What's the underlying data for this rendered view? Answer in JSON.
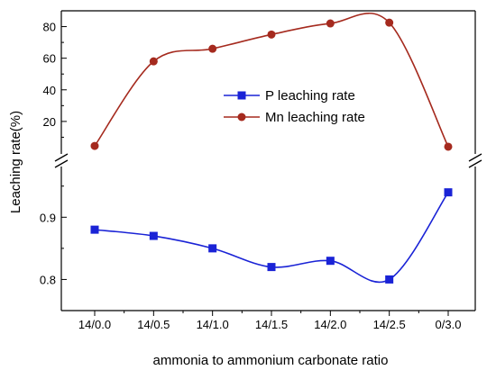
{
  "chart_data": {
    "type": "line",
    "title": "",
    "xlabel": "ammonia to ammonium carbonate  ratio",
    "ylabel": "Leaching rate(%)",
    "categories": [
      "14/0.0",
      "14/0.5",
      "14/1.0",
      "14/1.5",
      "14/2.0",
      "14/2.5",
      "0/3.0"
    ],
    "axis_break": true,
    "upper_axis": {
      "ylim": [
        0,
        90
      ],
      "ticks": [
        "20",
        "40",
        "60",
        "80"
      ]
    },
    "lower_axis": {
      "ylim": [
        0.75,
        0.98
      ],
      "ticks": [
        "0.8",
        "0.9"
      ]
    },
    "legend_position": "center-right",
    "series": [
      {
        "name": "P  leaching rate",
        "panel": "lower",
        "color": "#1a23d6",
        "marker": "square",
        "values": [
          0.88,
          0.87,
          0.85,
          0.82,
          0.83,
          0.8,
          0.94
        ]
      },
      {
        "name": "Mn leaching rate",
        "panel": "upper",
        "color": "#a52a1e",
        "marker": "circle",
        "values": [
          4.5,
          58,
          66,
          75,
          82,
          82.5,
          4
        ]
      }
    ]
  }
}
